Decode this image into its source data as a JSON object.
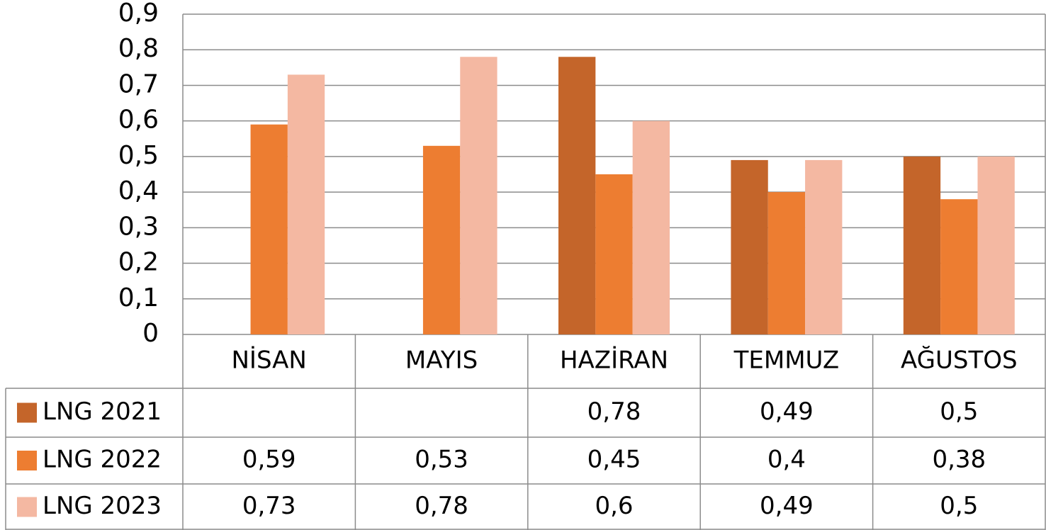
{
  "chart_data": {
    "type": "bar",
    "categories": [
      "NİSAN",
      "MAYIS",
      "HAZİRAN",
      "TEMMUZ",
      "AĞUSTOS"
    ],
    "series": [
      {
        "name": "LNG 2021",
        "color": "#c4652a",
        "values": [
          null,
          null,
          0.78,
          0.49,
          0.5
        ],
        "value_labels": [
          null,
          null,
          "0,78",
          "0,49",
          "0,5"
        ]
      },
      {
        "name": "LNG 2022",
        "color": "#ed7d31",
        "values": [
          0.59,
          0.53,
          0.45,
          0.4,
          0.38
        ],
        "value_labels": [
          "0,59",
          "0,53",
          "0,45",
          "0,4",
          "0,38"
        ]
      },
      {
        "name": "LNG 2023",
        "color": "#f4b8a2",
        "values": [
          0.73,
          0.78,
          0.6,
          0.49,
          0.5
        ],
        "value_labels": [
          "0,73",
          "0,78",
          "0,6",
          "0,49",
          "0,5"
        ]
      }
    ],
    "ylim": [
      0,
      0.9
    ],
    "yticks": [
      0,
      {
        "value": 0.1,
        "label": "0,1"
      },
      {
        "value": 0.2,
        "label": "0,2"
      },
      {
        "value": 0.3,
        "label": "0,3"
      },
      {
        "value": 0.4,
        "label": "0,4"
      },
      {
        "value": 0.5,
        "label": "0,5"
      },
      {
        "value": 0.6,
        "label": "0,6"
      },
      {
        "value": 0.7,
        "label": "0,7"
      },
      {
        "value": 0.8,
        "label": "0,8"
      },
      {
        "value": 0.9,
        "label": "0,9"
      }
    ],
    "grid": true,
    "data_table": true
  }
}
